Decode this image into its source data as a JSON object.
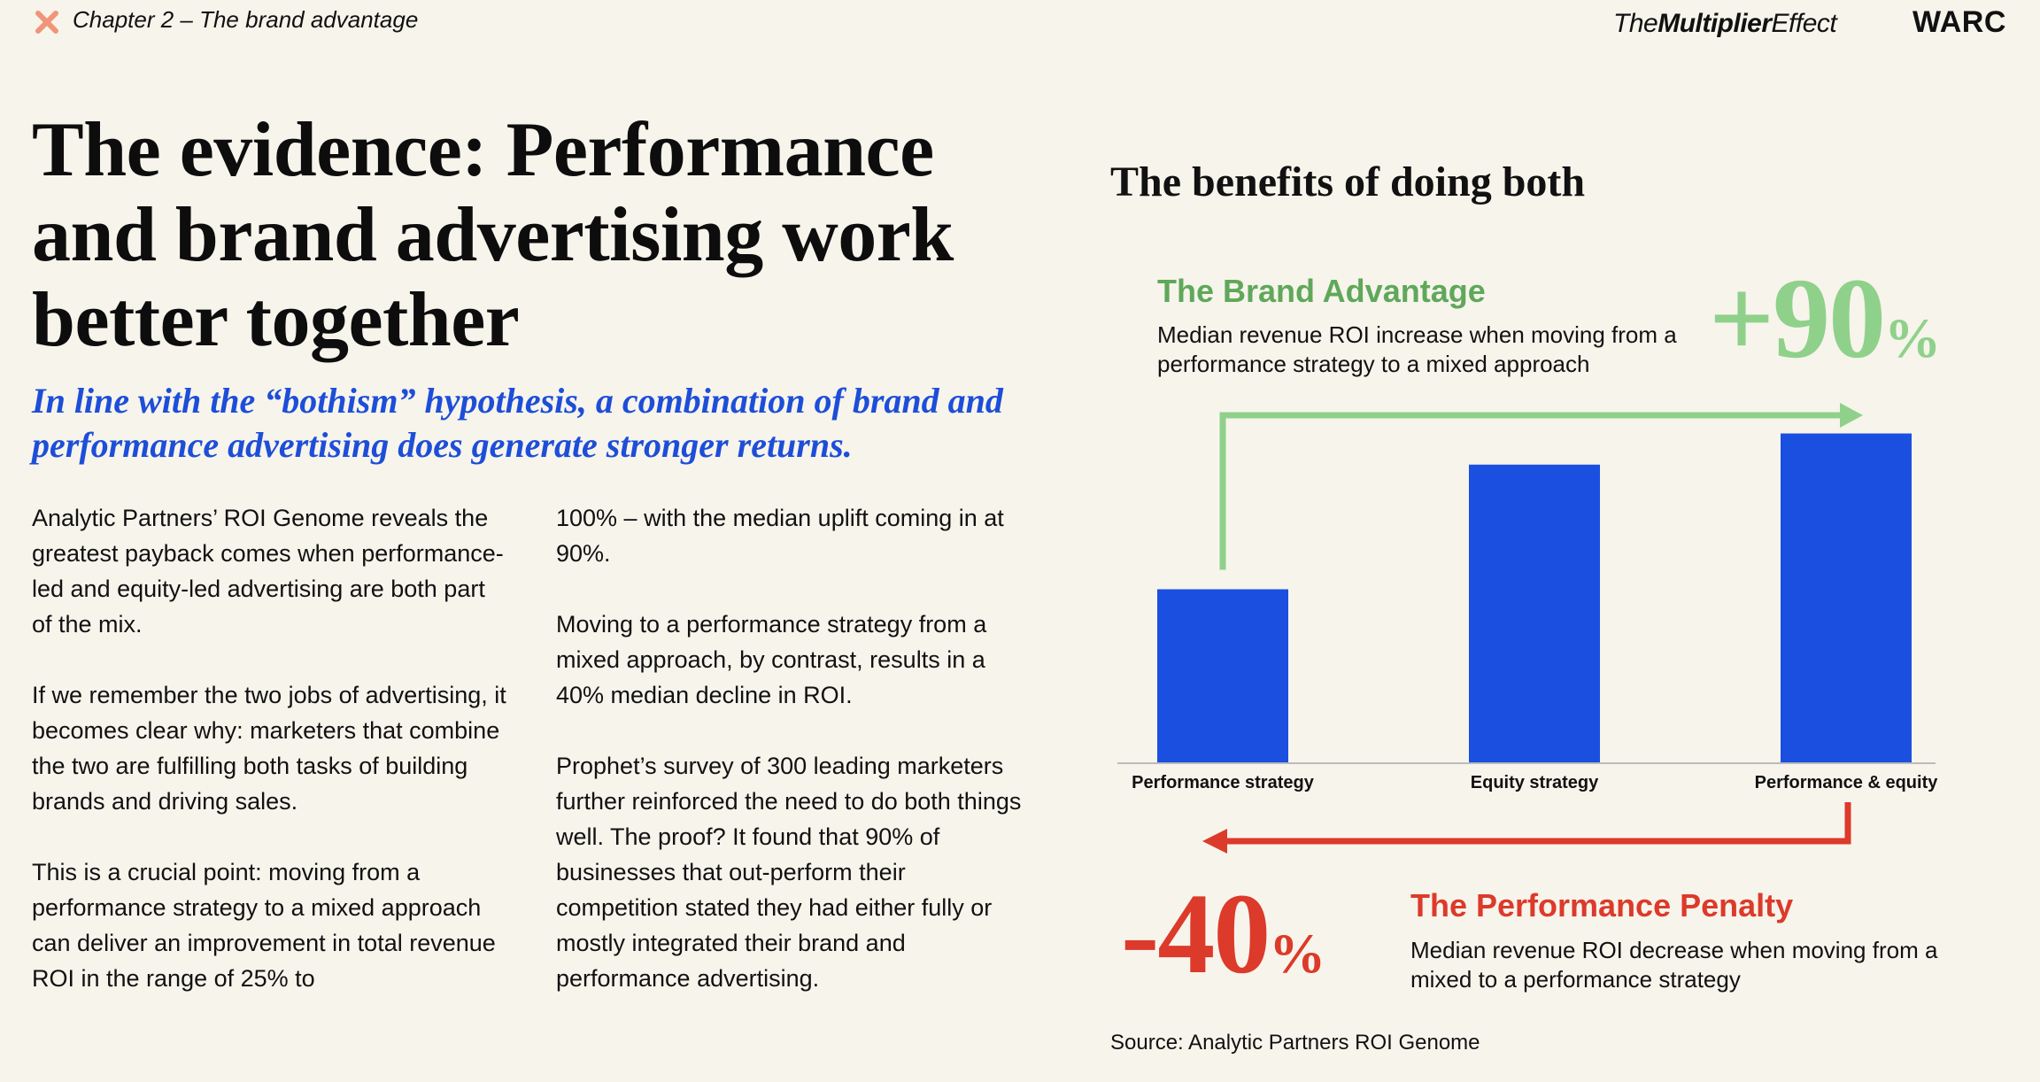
{
  "header": {
    "chapter": "Chapter 2 – The brand advantage",
    "publication_prefix": "The",
    "publication_bold": "Multiplier",
    "publication_suffix": "Effect",
    "brand": "WARC"
  },
  "article": {
    "headline": "The evidence: Performance and brand advertising work better together",
    "subhead": "In line with the “bothism” hypothesis, a combination of brand and performance advertising does generate stronger returns.",
    "left_paragraphs": [
      "Analytic Partners’ ROI Genome reveals the greatest payback comes when performance-led and equity-led advertising are both part of the mix.",
      "If we remember the two jobs of advertising, it becomes clear why: marketers that combine the two are fulfilling both tasks of building brands and driving sales.",
      "This is a crucial point: moving from a performance strategy to a mixed approach can deliver an improvement in total revenue ROI in the range of 25% to"
    ],
    "right_paragraphs": [
      "100% – with the median uplift coming in at 90%.",
      "Moving to a performance strategy from a mixed approach, by contrast, results in a 40% median decline in ROI.",
      "Prophet’s survey of 300 leading marketers further reinforced the need to do both things well. The proof? It found that 90% of businesses that out-perform their competition stated they had either fully or mostly integrated their brand and performance advertising."
    ]
  },
  "chart_data": {
    "type": "bar",
    "title": "The benefits of doing both",
    "categories": [
      "Performance strategy",
      "Equity strategy",
      "Performance & equity"
    ],
    "values": [
      1.0,
      1.72,
      1.9
    ],
    "ylim": [
      0,
      2.0
    ],
    "xlabel": "",
    "ylabel": "",
    "grid": false,
    "bar_color": "#1a4fe0",
    "annotations": {
      "advantage": {
        "title": "The Brand Advantage",
        "description": "Median revenue ROI increase when moving from a performance strategy to a mixed approach",
        "value": "+90",
        "unit": "%",
        "color": "#5fa85a",
        "arrow_color": "#8fd18b",
        "from": "Performance strategy",
        "to": "Performance & equity"
      },
      "penalty": {
        "title": "The Performance Penalty",
        "description": "Median revenue ROI decrease when moving from a mixed to a performance strategy",
        "value": "-40",
        "unit": "%",
        "color": "#dc3a2a",
        "from": "Performance & equity",
        "to": "Performance strategy"
      }
    },
    "source": "Source: Analytic Partners ROI Genome"
  }
}
